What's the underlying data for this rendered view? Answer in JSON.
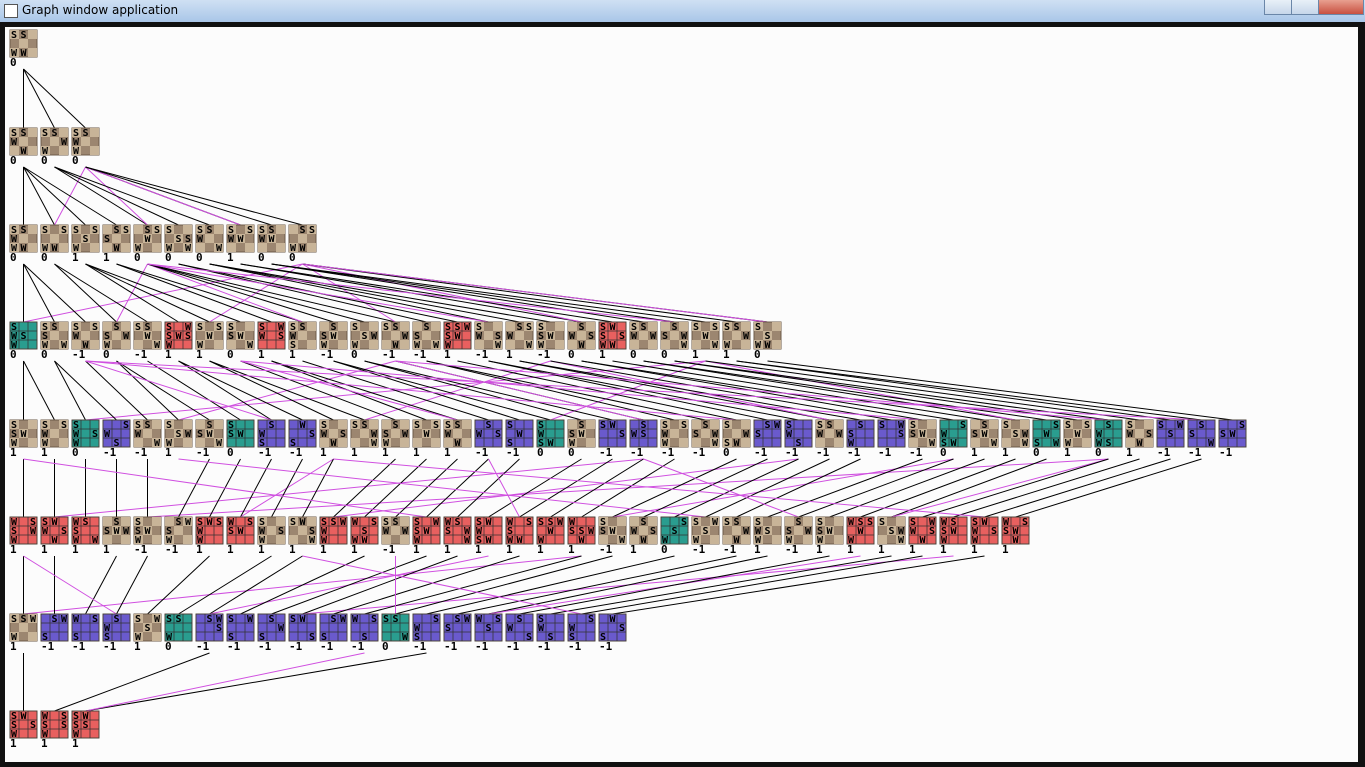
{
  "window": {
    "title": "Graph window application"
  },
  "palette": {
    "o": "#9c8670",
    "t": "#2a9d8f",
    "r": "#e8605f",
    "p": "#6a5acd"
  },
  "levels": [
    [
      [
        "o",
        0,
        "SS ",
        "   ",
        "WW "
      ]
    ],
    [
      [
        "o",
        0,
        "SS ",
        "W  ",
        " W "
      ],
      [
        "o",
        0,
        "SS ",
        "  W",
        "W  "
      ],
      [
        "o",
        0,
        "SS ",
        "W  ",
        "W  "
      ]
    ],
    [
      [
        "o",
        0,
        "SS ",
        "W  ",
        "WW "
      ],
      [
        "o",
        0,
        "S S",
        "   ",
        "WW "
      ],
      [
        "o",
        1,
        "S S",
        " S ",
        "W  "
      ],
      [
        "o",
        1,
        " SS",
        "S  ",
        " W "
      ],
      [
        "o",
        0,
        " SS",
        " W ",
        "W  "
      ],
      [
        "o",
        0,
        "S  ",
        " SS",
        "W W"
      ],
      [
        "o",
        0,
        "SS ",
        "W  ",
        "  W"
      ],
      [
        "o",
        1,
        "S S",
        "WW ",
        "   "
      ],
      [
        "o",
        0,
        "SS ",
        "WW ",
        "   "
      ],
      [
        "o",
        0,
        " SS",
        "   ",
        "WW "
      ]
    ],
    [
      [
        "t",
        0,
        "S  ",
        "WS ",
        "W  "
      ],
      [
        "o",
        0,
        "SS ",
        "S  ",
        "W W"
      ],
      [
        "o",
        -1,
        "S S",
        "W  ",
        " W "
      ],
      [
        "o",
        0,
        " S ",
        "S W",
        "W  "
      ],
      [
        "o",
        -1,
        "SS ",
        " W ",
        "  W"
      ],
      [
        "r",
        1,
        "S W",
        "SWS",
        "W  "
      ],
      [
        "o",
        1,
        "S S",
        " W ",
        "W  "
      ],
      [
        "o",
        0,
        "S  ",
        "SW ",
        "  W"
      ],
      [
        "r",
        1,
        "S W",
        "W S",
        "   "
      ],
      [
        "o",
        1,
        "SS ",
        "W  ",
        "S  "
      ],
      [
        "o",
        -1,
        " S ",
        "SW ",
        "W  "
      ],
      [
        "o",
        0,
        "S  ",
        " SW",
        "W  "
      ],
      [
        "o",
        -1,
        "SS ",
        "  W",
        " W "
      ],
      [
        "o",
        -1,
        " S ",
        "S  ",
        "W W"
      ],
      [
        "r",
        1,
        "SSW",
        "SW ",
        "W  "
      ],
      [
        "o",
        -1,
        "S  ",
        "W S",
        "  W"
      ],
      [
        "o",
        1,
        " SS",
        "W  ",
        "  W"
      ],
      [
        "o",
        -1,
        "S  ",
        "SW ",
        "W  "
      ],
      [
        "o",
        0,
        " S ",
        "W S",
        " W "
      ],
      [
        "r",
        1,
        "SW ",
        "S S",
        "WW "
      ],
      [
        "o",
        0,
        "SS ",
        "W W",
        "   "
      ],
      [
        "o",
        0,
        " S ",
        "S W",
        "  W"
      ],
      [
        "o",
        1,
        "S S",
        " W ",
        "  W"
      ],
      [
        "o",
        1,
        "SS ",
        "  W",
        "W  "
      ],
      [
        "o",
        0,
        "S  ",
        " S ",
        "WW "
      ]
    ],
    [
      [
        "o",
        1,
        "S  ",
        "SW ",
        "W  "
      ],
      [
        "o",
        1,
        "S S",
        "W  ",
        "W  "
      ],
      [
        "t",
        0,
        "S  ",
        "W S",
        "W  "
      ],
      [
        "p",
        -1,
        "  S",
        "W  ",
        " S "
      ],
      [
        "o",
        -1,
        "SS ",
        "W  ",
        "  W"
      ],
      [
        "o",
        1,
        "S  ",
        " SW",
        "W  "
      ],
      [
        "o",
        -1,
        " S ",
        "SW ",
        "  W"
      ],
      [
        "t",
        0,
        "S  ",
        "SW ",
        "   "
      ],
      [
        "p",
        -1,
        " S ",
        "W  ",
        "S  "
      ],
      [
        "p",
        -1,
        " W ",
        "  S",
        "S  "
      ],
      [
        "o",
        1,
        "S  ",
        "W S",
        " W "
      ],
      [
        "o",
        1,
        "SS ",
        "  W",
        "  W"
      ],
      [
        "o",
        1,
        " S ",
        "S W",
        "W  "
      ],
      [
        "o",
        1,
        "S S",
        " W ",
        "   "
      ],
      [
        "o",
        1,
        "SS ",
        "W  ",
        " W "
      ],
      [
        "p",
        -1,
        " S ",
        "W S",
        "   "
      ],
      [
        "p",
        -1,
        "S  ",
        " W ",
        "S  "
      ],
      [
        "t",
        0,
        "S  ",
        "W  ",
        "SW "
      ],
      [
        "o",
        0,
        " S ",
        "SW ",
        "W  "
      ],
      [
        "p",
        -1,
        "SW ",
        "  S",
        "   "
      ],
      [
        "p",
        -1,
        " S ",
        "WS ",
        "   "
      ],
      [
        "o",
        -1,
        "S S",
        "W  ",
        "W  "
      ],
      [
        "o",
        -1,
        " S ",
        "S W",
        "  W"
      ],
      [
        "o",
        0,
        "S  ",
        "  W",
        "SW "
      ],
      [
        "p",
        -1,
        " SW",
        "S  ",
        "   "
      ],
      [
        "p",
        -1,
        "S  ",
        "W  ",
        " S "
      ],
      [
        "o",
        -1,
        "SS ",
        "W W",
        "   "
      ],
      [
        "p",
        -1,
        " S ",
        "S  ",
        "W  "
      ],
      [
        "p",
        -1,
        "S W",
        "  S",
        "   "
      ],
      [
        "o",
        -1,
        "S  ",
        "SW ",
        "  W"
      ],
      [
        "t",
        0,
        "  S",
        "W  ",
        "SW "
      ],
      [
        "o",
        1,
        " S ",
        "SW ",
        "  W"
      ],
      [
        "o",
        1,
        "S  ",
        " SW",
        "  W"
      ],
      [
        "t",
        0,
        "  S",
        " W ",
        "S W"
      ],
      [
        "o",
        1,
        "S S",
        " W ",
        "W  "
      ],
      [
        "t",
        0,
        " S ",
        "W  ",
        "WS "
      ],
      [
        "o",
        1,
        "S  ",
        "W S",
        " W "
      ],
      [
        "p",
        -1,
        "S W",
        " S ",
        "   "
      ],
      [
        "p",
        -1,
        " S ",
        "S  ",
        "  W"
      ],
      [
        "p",
        -1,
        "  S",
        "SW ",
        "   "
      ]
    ],
    [
      [
        "r",
        1,
        "W S",
        "S W",
        "W  "
      ],
      [
        "r",
        1,
        "SW ",
        "W S",
        " W "
      ],
      [
        "r",
        1,
        "WS ",
        "S  ",
        "W W"
      ],
      [
        "o",
        1,
        " S ",
        "SWW",
        "   "
      ],
      [
        "o",
        -1,
        "S  ",
        "SW ",
        "W  "
      ],
      [
        "o",
        -1,
        " SW",
        "S  ",
        "W  "
      ],
      [
        "r",
        1,
        "SWS",
        "W  ",
        "W  "
      ],
      [
        "r",
        1,
        "W S",
        "SW ",
        "   "
      ],
      [
        "o",
        1,
        "S  ",
        "W S",
        "W  "
      ],
      [
        "o",
        1,
        "SW ",
        "  S",
        "  W"
      ],
      [
        "r",
        1,
        "SSW",
        "W  ",
        "W  "
      ],
      [
        "r",
        1,
        "W S",
        " S ",
        "WW "
      ],
      [
        "o",
        -1,
        "SS ",
        "W W",
        "   "
      ],
      [
        "r",
        1,
        "S W",
        "SW ",
        "W  "
      ],
      [
        "r",
        1,
        "WS ",
        "S W",
        "  W"
      ],
      [
        "r",
        1,
        "SW ",
        "W  ",
        "SW "
      ],
      [
        "r",
        1,
        "W S",
        "S  ",
        "WW "
      ],
      [
        "r",
        1,
        "SSW",
        " W ",
        "W  "
      ],
      [
        "r",
        1,
        "W  ",
        "SSW",
        " W "
      ],
      [
        "o",
        -1,
        "S  ",
        "SW ",
        "  W"
      ],
      [
        "o",
        1,
        " S ",
        "W S",
        " W "
      ],
      [
        "t",
        0,
        "  S",
        " S ",
        "W  "
      ],
      [
        "o",
        -1,
        "S W",
        " S ",
        "W  "
      ],
      [
        "o",
        -1,
        "SS ",
        "  W",
        " W "
      ],
      [
        "o",
        1,
        "S  ",
        "WS ",
        "W  "
      ],
      [
        "o",
        -1,
        " S ",
        "S W",
        "W  "
      ],
      [
        "o",
        1,
        "S  ",
        "SW ",
        "W  "
      ],
      [
        "r",
        1,
        "WSS",
        " W ",
        "W  "
      ],
      [
        "o",
        1,
        "S  ",
        " SW",
        "  W"
      ],
      [
        "r",
        1,
        "S W",
        "W S",
        " W "
      ],
      [
        "r",
        1,
        "WS ",
        "SW ",
        "W  "
      ],
      [
        "r",
        1,
        "SW ",
        "W S",
        "W  "
      ],
      [
        "r",
        1,
        "W S",
        "SW ",
        " W "
      ]
    ],
    [
      [
        "o",
        1,
        "SSW",
        "   ",
        "W  "
      ],
      [
        "p",
        -1,
        " SW",
        "   ",
        "S  "
      ],
      [
        "p",
        -1,
        "W S",
        "   ",
        "S  "
      ],
      [
        "p",
        -1,
        " S ",
        "W  ",
        "S  "
      ],
      [
        "o",
        1,
        "S W",
        " S ",
        "W  "
      ],
      [
        "t",
        0,
        "SS ",
        "   ",
        "W  "
      ],
      [
        "p",
        -1,
        " SW",
        "  S",
        "   "
      ],
      [
        "p",
        -1,
        "S W",
        "   ",
        "S  "
      ],
      [
        "p",
        -1,
        " S ",
        "  W",
        "S  "
      ],
      [
        "p",
        -1,
        "SW ",
        "   ",
        "  S"
      ],
      [
        "p",
        -1,
        " SW",
        "   ",
        "S  "
      ],
      [
        "p",
        -1,
        "W S",
        "   ",
        " S "
      ],
      [
        "t",
        0,
        "SS ",
        "   ",
        "  W"
      ],
      [
        "p",
        -1,
        "  S",
        "W  ",
        "S  "
      ],
      [
        "p",
        -1,
        " SW",
        "S  ",
        "   "
      ],
      [
        "p",
        -1,
        "W S",
        " S ",
        "   "
      ],
      [
        "p",
        -1,
        " S ",
        "W  ",
        "  S"
      ],
      [
        "p",
        -1,
        "S  ",
        "W  ",
        " S "
      ],
      [
        "p",
        -1,
        "  S",
        "W  ",
        "S  "
      ],
      [
        "p",
        -1,
        " W ",
        "  S",
        "S  "
      ]
    ],
    [
      [
        "r",
        1,
        "SW ",
        "S S",
        "W  "
      ],
      [
        "r",
        1,
        "W S",
        "S S",
        "W  "
      ],
      [
        "r",
        1,
        "SW ",
        "SS ",
        "W  "
      ]
    ]
  ]
}
